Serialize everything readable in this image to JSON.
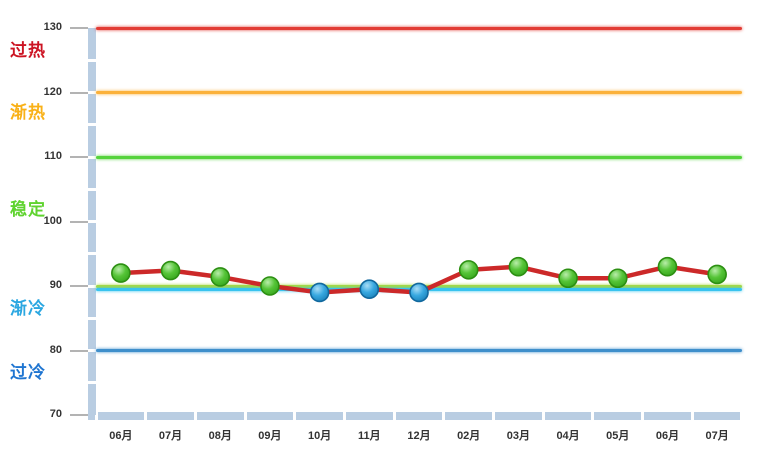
{
  "chart_data": {
    "type": "line",
    "title": "",
    "categories": [
      "06月",
      "07月",
      "08月",
      "09月",
      "10月",
      "11月",
      "12月",
      "02月",
      "03月",
      "04月",
      "05月",
      "06月",
      "07月"
    ],
    "series": [
      {
        "values": [
          92,
          92.4,
          91.4,
          90,
          89,
          89.5,
          89,
          92.5,
          93,
          91.2,
          91.2,
          93,
          91.8
        ],
        "marker_colors": [
          "green",
          "green",
          "green",
          "green",
          "blue",
          "blue",
          "blue",
          "green",
          "green",
          "green",
          "green",
          "green",
          "green"
        ],
        "line_color": "#cc2929"
      }
    ],
    "ylim": [
      70,
      130
    ],
    "yticks": [
      130,
      120,
      110,
      100,
      90,
      80,
      70
    ],
    "grid": "off",
    "legend": "none",
    "ref_lines": [
      {
        "value": 130,
        "color": "#e23c35"
      },
      {
        "value": 120,
        "color": "#fbb13a"
      },
      {
        "value": 110,
        "color": "#55d33c"
      },
      {
        "value": 90,
        "color": "#a9da3d"
      },
      {
        "value": 89.5,
        "color": "#38c3ef"
      },
      {
        "value": 80,
        "color": "#3f8fcb"
      }
    ],
    "zones": [
      {
        "label": "过热",
        "color": "#cc1423",
        "at": 126.5
      },
      {
        "label": "渐热",
        "color": "#f9b118",
        "at": 116.8
      },
      {
        "label": "稳定",
        "color": "#5fd32f",
        "at": 101.8
      },
      {
        "label": "渐冷",
        "color": "#2ba7e1",
        "at": 86.5
      },
      {
        "label": "过冷",
        "color": "#1f75d1",
        "at": 76.5
      }
    ],
    "marker_palette": {
      "green": {
        "inner": "#b9edaa",
        "mid": "#55c437",
        "outer": "#2f9e17",
        "border": "#2c8f12"
      },
      "blue": {
        "inner": "#a9ddf6",
        "mid": "#37a8e0",
        "outer": "#1478b0",
        "border": "#11689e"
      }
    }
  },
  "colors": {
    "axis_bar": "#b9cde2",
    "tick_mark": "#b3b3b3",
    "tick_label": "#333333",
    "month_label": "#333333",
    "background": "#ffffff"
  }
}
